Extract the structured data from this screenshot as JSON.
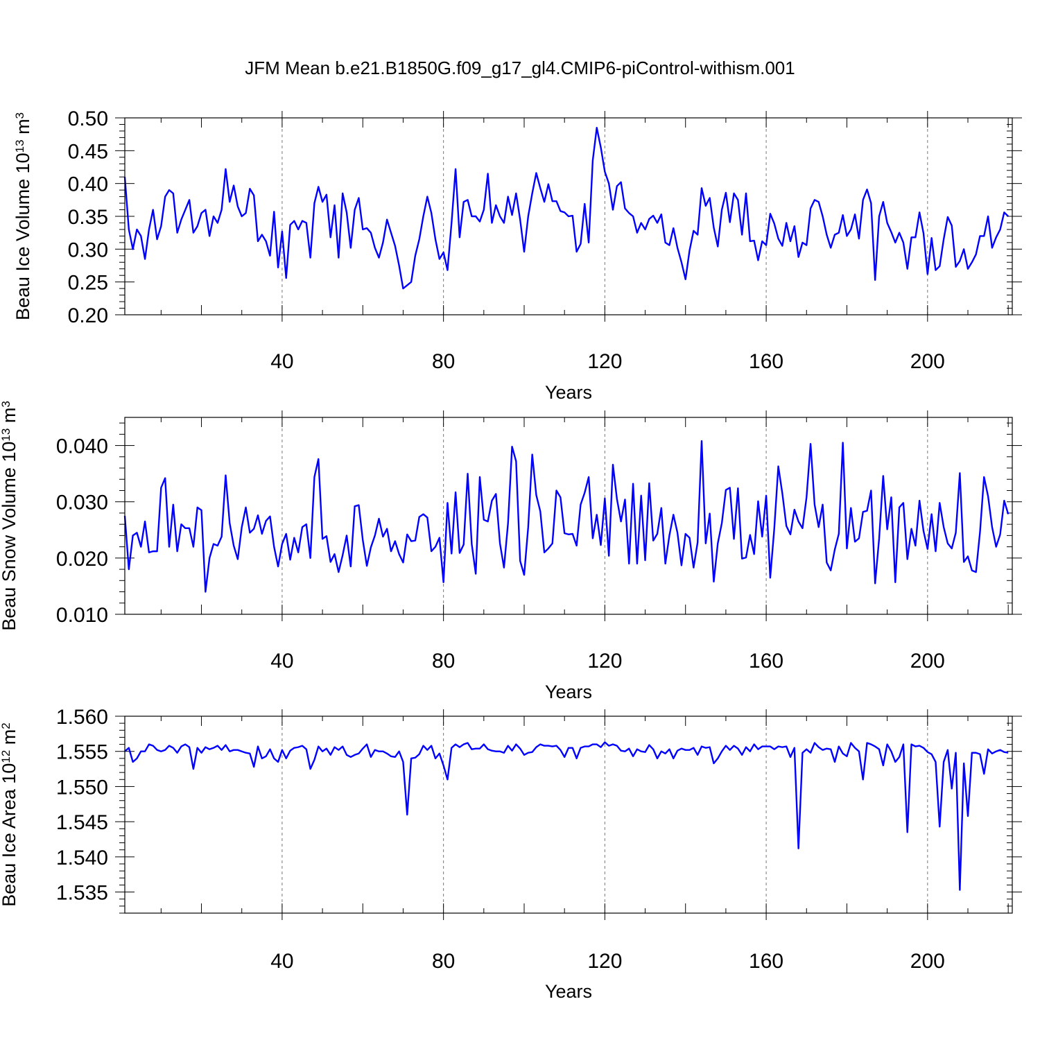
{
  "figure": {
    "title": "JFM Mean b.e21.B1850G.f09_g17_gl4.CMIP6-piControl-withism.001"
  },
  "chart_data": [
    {
      "type": "line",
      "xlabel": "Years",
      "ylabel": "Beau Ice Volume 10",
      "ylabel_sup": "13",
      "ylabel_unit": " m",
      "ylabel_unit_sup": "3",
      "xlim": [
        1,
        221
      ],
      "ylim": [
        0.2,
        0.5
      ],
      "xticks": [
        40,
        80,
        120,
        160,
        200
      ],
      "xtick_labels": [
        "40",
        "80",
        "120",
        "160",
        "200"
      ],
      "yticks": [
        0.2,
        0.25,
        0.3,
        0.35,
        0.4,
        0.45,
        0.5
      ],
      "ytick_labels": [
        "0.20",
        "0.25",
        "0.30",
        "0.35",
        "0.40",
        "0.45",
        "0.50"
      ],
      "grid": "vertical dashed at labeled x ticks",
      "color": "#0000ff",
      "x_start": 1,
      "x_step": 1,
      "values": [
        0.41,
        0.33,
        0.3,
        0.33,
        0.32,
        0.285,
        0.33,
        0.36,
        0.315,
        0.335,
        0.38,
        0.39,
        0.385,
        0.325,
        0.345,
        0.36,
        0.375,
        0.325,
        0.335,
        0.355,
        0.36,
        0.32,
        0.35,
        0.34,
        0.36,
        0.422,
        0.372,
        0.397,
        0.365,
        0.35,
        0.355,
        0.392,
        0.382,
        0.312,
        0.322,
        0.312,
        0.29,
        0.357,
        0.272,
        0.327,
        0.256,
        0.337,
        0.343,
        0.33,
        0.343,
        0.34,
        0.287,
        0.37,
        0.395,
        0.372,
        0.383,
        0.318,
        0.367,
        0.287,
        0.385,
        0.356,
        0.302,
        0.36,
        0.378,
        0.33,
        0.332,
        0.325,
        0.302,
        0.287,
        0.31,
        0.345,
        0.325,
        0.305,
        0.275,
        0.24,
        0.245,
        0.25,
        0.29,
        0.315,
        0.35,
        0.38,
        0.355,
        0.315,
        0.285,
        0.295,
        0.268,
        0.34,
        0.422,
        0.318,
        0.372,
        0.375,
        0.35,
        0.35,
        0.342,
        0.36,
        0.415,
        0.34,
        0.367,
        0.35,
        0.34,
        0.38,
        0.352,
        0.385,
        0.345,
        0.296,
        0.35,
        0.385,
        0.416,
        0.393,
        0.372,
        0.399,
        0.373,
        0.373,
        0.358,
        0.356,
        0.35,
        0.351,
        0.296,
        0.308,
        0.369,
        0.31,
        0.435,
        0.485,
        0.455,
        0.418,
        0.4,
        0.36,
        0.396,
        0.402,
        0.362,
        0.355,
        0.35,
        0.325,
        0.34,
        0.33,
        0.346,
        0.351,
        0.34,
        0.353,
        0.31,
        0.306,
        0.332,
        0.302,
        0.28,
        0.254,
        0.298,
        0.328,
        0.322,
        0.393,
        0.366,
        0.378,
        0.333,
        0.304,
        0.36,
        0.386,
        0.341,
        0.385,
        0.375,
        0.322,
        0.385,
        0.312,
        0.313,
        0.283,
        0.312,
        0.306,
        0.354,
        0.339,
        0.316,
        0.305,
        0.34,
        0.312,
        0.335,
        0.288,
        0.31,
        0.306,
        0.362,
        0.375,
        0.372,
        0.35,
        0.322,
        0.302,
        0.322,
        0.325,
        0.352,
        0.32,
        0.33,
        0.353,
        0.316,
        0.375,
        0.391,
        0.37,
        0.253,
        0.35,
        0.372,
        0.34,
        0.326,
        0.31,
        0.325,
        0.31,
        0.27,
        0.318,
        0.318,
        0.356,
        0.324,
        0.262,
        0.317,
        0.268,
        0.274,
        0.315,
        0.349,
        0.336,
        0.273,
        0.282,
        0.3,
        0.27,
        0.28,
        0.292,
        0.32,
        0.32,
        0.35,
        0.302,
        0.318,
        0.33,
        0.356,
        0.35
      ]
    },
    {
      "type": "line",
      "xlabel": "Years",
      "ylabel": "Beau Snow Volume 10",
      "ylabel_sup": "13",
      "ylabel_unit": " m",
      "ylabel_unit_sup": "3",
      "xlim": [
        1,
        221
      ],
      "ylim": [
        0.01,
        0.045
      ],
      "xticks": [
        40,
        80,
        120,
        160,
        200
      ],
      "xtick_labels": [
        "40",
        "80",
        "120",
        "160",
        "200"
      ],
      "yticks": [
        0.01,
        0.02,
        0.03,
        0.04
      ],
      "ytick_labels": [
        "0.010",
        "0.020",
        "0.030",
        "0.040"
      ],
      "grid": "vertical dashed at labeled x ticks",
      "color": "#0000ff",
      "x_start": 1,
      "x_step": 1,
      "values": [
        0.0275,
        0.018,
        0.024,
        0.0245,
        0.022,
        0.0265,
        0.021,
        0.0212,
        0.0212,
        0.0325,
        0.0342,
        0.022,
        0.0295,
        0.0212,
        0.026,
        0.0253,
        0.0253,
        0.022,
        0.029,
        0.0285,
        0.014,
        0.02,
        0.0225,
        0.0222,
        0.0238,
        0.0347,
        0.0262,
        0.0222,
        0.0198,
        0.0255,
        0.029,
        0.0245,
        0.0252,
        0.0276,
        0.0243,
        0.0266,
        0.0274,
        0.022,
        0.0185,
        0.0225,
        0.0243,
        0.0197,
        0.0236,
        0.021,
        0.0255,
        0.026,
        0.02,
        0.0344,
        0.0376,
        0.0234,
        0.0239,
        0.0193,
        0.0207,
        0.0175,
        0.0205,
        0.024,
        0.0185,
        0.0292,
        0.0294,
        0.0232,
        0.0186,
        0.0219,
        0.024,
        0.027,
        0.0238,
        0.0252,
        0.0212,
        0.023,
        0.0207,
        0.0192,
        0.0242,
        0.023,
        0.0231,
        0.0273,
        0.0278,
        0.0272,
        0.0212,
        0.022,
        0.0236,
        0.0157,
        0.0298,
        0.0208,
        0.0317,
        0.0209,
        0.0224,
        0.035,
        0.0225,
        0.0172,
        0.0344,
        0.0268,
        0.0265,
        0.0302,
        0.0314,
        0.0226,
        0.0183,
        0.0262,
        0.0398,
        0.0372,
        0.0195,
        0.017,
        0.0255,
        0.0384,
        0.0312,
        0.0283,
        0.021,
        0.0217,
        0.0226,
        0.032,
        0.0308,
        0.0244,
        0.0242,
        0.0243,
        0.0222,
        0.0295,
        0.0316,
        0.0344,
        0.0235,
        0.0277,
        0.0223,
        0.0306,
        0.0204,
        0.0366,
        0.0305,
        0.0265,
        0.0304,
        0.019,
        0.0332,
        0.019,
        0.0311,
        0.0196,
        0.0333,
        0.0231,
        0.0243,
        0.0289,
        0.019,
        0.024,
        0.0277,
        0.0245,
        0.0187,
        0.0243,
        0.0236,
        0.0183,
        0.0228,
        0.0408,
        0.0226,
        0.0279,
        0.0158,
        0.0226,
        0.0262,
        0.0321,
        0.0325,
        0.0234,
        0.0324,
        0.0199,
        0.0201,
        0.0241,
        0.0207,
        0.0301,
        0.0238,
        0.0311,
        0.0165,
        0.0252,
        0.0363,
        0.0315,
        0.0257,
        0.0242,
        0.0286,
        0.0265,
        0.0253,
        0.0308,
        0.0403,
        0.0295,
        0.0255,
        0.0295,
        0.0192,
        0.0178,
        0.0215,
        0.0243,
        0.0405,
        0.0217,
        0.0289,
        0.0229,
        0.0235,
        0.0282,
        0.0284,
        0.032,
        0.0155,
        0.0235,
        0.0346,
        0.0251,
        0.0308,
        0.0157,
        0.029,
        0.0298,
        0.0198,
        0.0252,
        0.0222,
        0.0302,
        0.0248,
        0.0216,
        0.0278,
        0.0212,
        0.0298,
        0.0255,
        0.0226,
        0.0217,
        0.0245,
        0.0351,
        0.0193,
        0.0203,
        0.0178,
        0.0175,
        0.0246,
        0.0344,
        0.031,
        0.0255,
        0.022,
        0.0242,
        0.0302,
        0.0278
      ]
    },
    {
      "type": "line",
      "xlabel": "Years",
      "ylabel": "Beau Ice Area 10",
      "ylabel_sup": "12",
      "ylabel_unit": " m",
      "ylabel_unit_sup": "2",
      "xlim": [
        1,
        221
      ],
      "ylim": [
        1.532,
        1.56
      ],
      "xticks": [
        40,
        80,
        120,
        160,
        200
      ],
      "xtick_labels": [
        "40",
        "80",
        "120",
        "160",
        "200"
      ],
      "yticks": [
        1.535,
        1.54,
        1.545,
        1.55,
        1.555,
        1.56
      ],
      "ytick_labels": [
        "1.535",
        "1.540",
        "1.545",
        "1.550",
        "1.555",
        "1.560"
      ],
      "grid": "vertical dashed at labeled x ticks",
      "color": "#0000ff",
      "x_start": 1,
      "x_step": 1,
      "values": [
        1.555,
        1.5555,
        1.5535,
        1.554,
        1.555,
        1.555,
        1.556,
        1.5558,
        1.5552,
        1.555,
        1.5552,
        1.5558,
        1.5555,
        1.5548,
        1.5557,
        1.556,
        1.5556,
        1.5525,
        1.5555,
        1.5548,
        1.5556,
        1.5553,
        1.5555,
        1.5558,
        1.5552,
        1.5559,
        1.555,
        1.5552,
        1.5552,
        1.555,
        1.5548,
        1.5547,
        1.5528,
        1.5557,
        1.554,
        1.5543,
        1.5553,
        1.554,
        1.5535,
        1.5552,
        1.554,
        1.5551,
        1.5555,
        1.5556,
        1.5558,
        1.5553,
        1.5525,
        1.5538,
        1.5557,
        1.555,
        1.5554,
        1.5545,
        1.5556,
        1.5552,
        1.5557,
        1.5545,
        1.5542,
        1.5545,
        1.5547,
        1.5554,
        1.556,
        1.5542,
        1.5552,
        1.555,
        1.555,
        1.5547,
        1.5543,
        1.5542,
        1.555,
        1.5535,
        1.546,
        1.554,
        1.5541,
        1.5546,
        1.5558,
        1.5552,
        1.5558,
        1.554,
        1.5547,
        1.553,
        1.551,
        1.5555,
        1.556,
        1.5556,
        1.556,
        1.5562,
        1.5553,
        1.5554,
        1.5554,
        1.556,
        1.5553,
        1.5551,
        1.555,
        1.555,
        1.5548,
        1.5558,
        1.5551,
        1.556,
        1.5554,
        1.5545,
        1.5548,
        1.5549,
        1.5556,
        1.556,
        1.5558,
        1.5558,
        1.5557,
        1.5558,
        1.5552,
        1.5542,
        1.5555,
        1.5555,
        1.554,
        1.5555,
        1.5557,
        1.5557,
        1.556,
        1.556,
        1.5556,
        1.5563,
        1.5558,
        1.556,
        1.5558,
        1.5551,
        1.555,
        1.5554,
        1.5543,
        1.5553,
        1.555,
        1.5549,
        1.5559,
        1.5553,
        1.554,
        1.555,
        1.5547,
        1.5553,
        1.554,
        1.5551,
        1.5554,
        1.5552,
        1.5552,
        1.5555,
        1.5545,
        1.5557,
        1.5555,
        1.5556,
        1.5533,
        1.554,
        1.555,
        1.5558,
        1.5552,
        1.5558,
        1.5554,
        1.5545,
        1.5556,
        1.555,
        1.556,
        1.5553,
        1.5557,
        1.5557,
        1.5557,
        1.5553,
        1.5557,
        1.5556,
        1.5557,
        1.5542,
        1.5555,
        1.5412,
        1.5548,
        1.5553,
        1.5548,
        1.5562,
        1.5556,
        1.5552,
        1.5554,
        1.5553,
        1.5535,
        1.5557,
        1.5547,
        1.5543,
        1.5562,
        1.5555,
        1.555,
        1.551,
        1.5562,
        1.556,
        1.5557,
        1.5553,
        1.553,
        1.556,
        1.555,
        1.5535,
        1.5542,
        1.556,
        1.5435,
        1.556,
        1.5557,
        1.5558,
        1.5555,
        1.5549,
        1.5546,
        1.5535,
        1.5443,
        1.5535,
        1.5552,
        1.5497,
        1.5548,
        1.5353,
        1.5533,
        1.5458,
        1.5548,
        1.5548,
        1.5546,
        1.5518,
        1.5553,
        1.5547,
        1.555,
        1.5552,
        1.5549,
        1.5548
      ]
    }
  ]
}
